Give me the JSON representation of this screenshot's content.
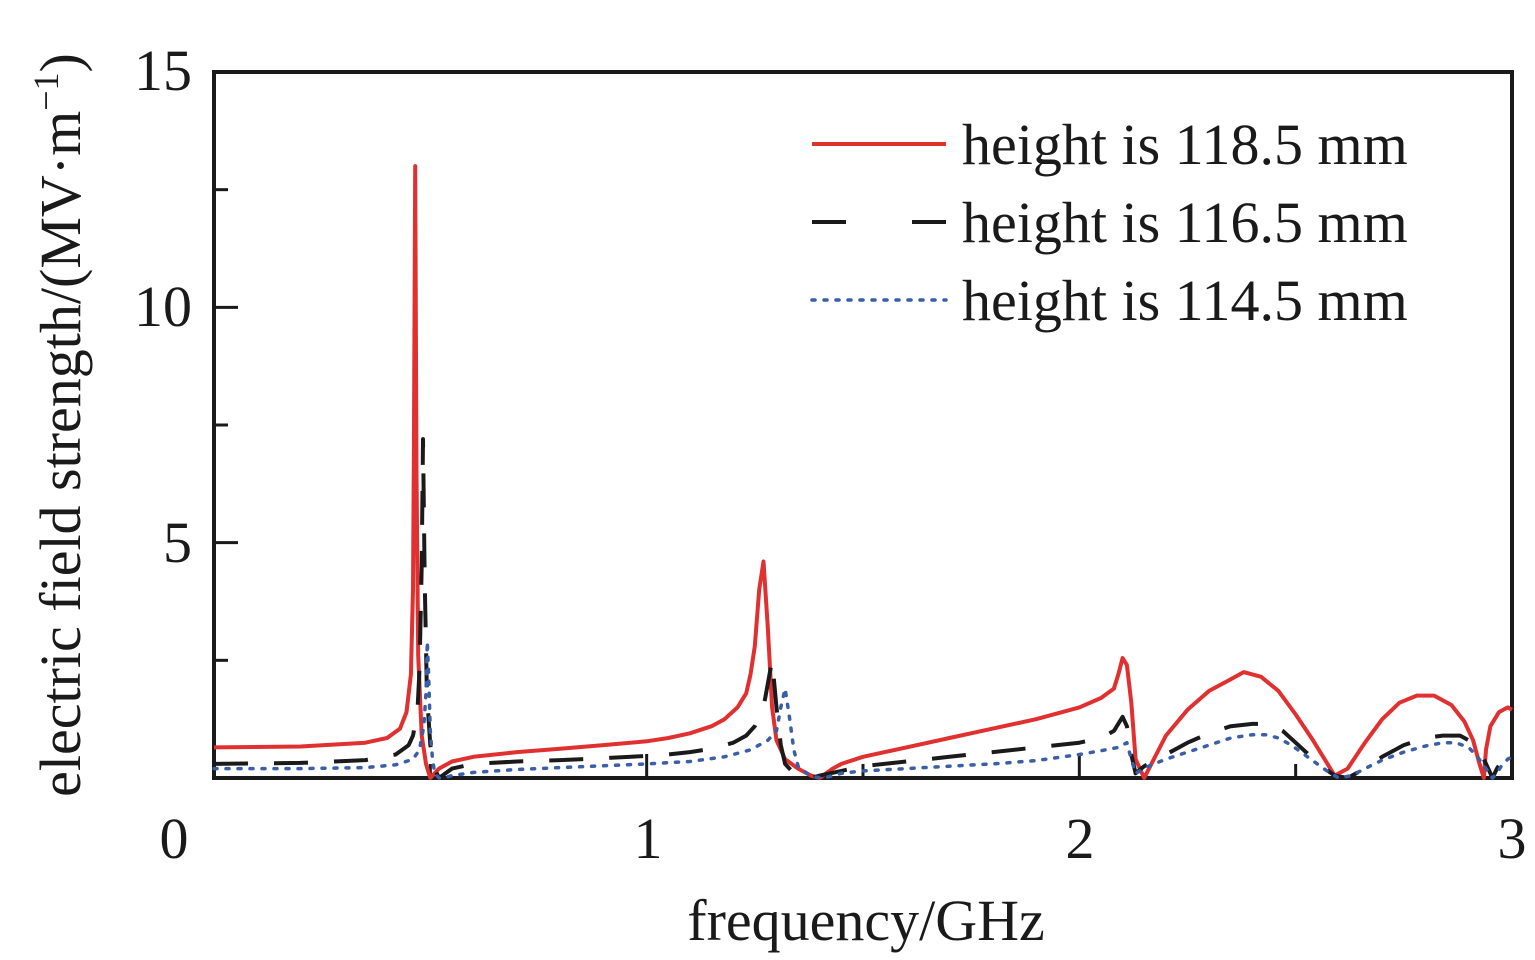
{
  "chart_data": {
    "type": "line",
    "xlabel": "frequency/GHz",
    "ylabel": "electric field strength/(MV·m",
    "ylabel_sup": "−1",
    "ylabel_close": ")",
    "xlim": [
      0,
      3
    ],
    "ylim": [
      0,
      15
    ],
    "x_ticks": [
      "0",
      "1",
      "2",
      "3"
    ],
    "y_ticks": [
      "5",
      "10",
      "15"
    ],
    "grid": false,
    "legend_position": "top-right",
    "series": [
      {
        "name": "height is 118.5 mm",
        "color": "#e03030",
        "style": "solid",
        "x": [
          0.0,
          0.2,
          0.35,
          0.4,
          0.43,
          0.445,
          0.455,
          0.46,
          0.462,
          0.465,
          0.468,
          0.472,
          0.48,
          0.49,
          0.5,
          0.52,
          0.55,
          0.6,
          0.7,
          0.8,
          0.9,
          1.0,
          1.05,
          1.1,
          1.15,
          1.18,
          1.21,
          1.23,
          1.24,
          1.25,
          1.26,
          1.27,
          1.28,
          1.29,
          1.3,
          1.32,
          1.35,
          1.38,
          1.4,
          1.43,
          1.45,
          1.5,
          1.6,
          1.7,
          1.8,
          1.9,
          2.0,
          2.05,
          2.08,
          2.09,
          2.1,
          2.11,
          2.12,
          2.13,
          2.15,
          2.2,
          2.25,
          2.3,
          2.35,
          2.38,
          2.42,
          2.46,
          2.5,
          2.54,
          2.57,
          2.59,
          2.62,
          2.66,
          2.7,
          2.74,
          2.78,
          2.82,
          2.86,
          2.89,
          2.91,
          2.925,
          2.935,
          2.94,
          2.95,
          2.97,
          2.99,
          3.0
        ],
        "y": [
          0.65,
          0.67,
          0.75,
          0.85,
          1.05,
          1.4,
          2.2,
          4.0,
          7.0,
          13.0,
          6.5,
          2.6,
          0.9,
          0.3,
          0.0,
          0.2,
          0.35,
          0.45,
          0.55,
          0.62,
          0.7,
          0.78,
          0.85,
          0.95,
          1.1,
          1.25,
          1.5,
          1.8,
          2.2,
          2.8,
          4.0,
          4.6,
          3.2,
          1.5,
          0.8,
          0.4,
          0.2,
          0.05,
          0.0,
          0.2,
          0.3,
          0.45,
          0.65,
          0.85,
          1.05,
          1.25,
          1.5,
          1.7,
          1.9,
          2.2,
          2.55,
          2.4,
          1.6,
          0.4,
          0.0,
          0.9,
          1.45,
          1.85,
          2.1,
          2.25,
          2.15,
          1.85,
          1.35,
          0.8,
          0.35,
          0.05,
          0.2,
          0.75,
          1.25,
          1.6,
          1.75,
          1.75,
          1.55,
          1.2,
          0.8,
          0.3,
          0.0,
          0.6,
          1.1,
          1.4,
          1.5,
          1.45
        ]
      },
      {
        "name": "height is 116.5 mm",
        "color": "#1a1a1a",
        "style": "dashed",
        "x": [
          0.0,
          0.2,
          0.35,
          0.42,
          0.45,
          0.46,
          0.47,
          0.475,
          0.48,
          0.483,
          0.487,
          0.492,
          0.5,
          0.51,
          0.52,
          0.55,
          0.6,
          0.7,
          0.8,
          0.9,
          1.0,
          1.05,
          1.1,
          1.15,
          1.2,
          1.23,
          1.25,
          1.27,
          1.28,
          1.29,
          1.3,
          1.31,
          1.32,
          1.34,
          1.36,
          1.38,
          1.4,
          1.45,
          1.5,
          1.6,
          1.7,
          1.8,
          1.9,
          2.0,
          2.05,
          2.08,
          2.1,
          2.11,
          2.12,
          2.13,
          2.15,
          2.2,
          2.25,
          2.3,
          2.35,
          2.4,
          2.44,
          2.47,
          2.5,
          2.53,
          2.56,
          2.59,
          2.62,
          2.65,
          2.7,
          2.75,
          2.8,
          2.84,
          2.88,
          2.91,
          2.93,
          2.945,
          2.955,
          2.965,
          2.98,
          3.0
        ],
        "y": [
          0.3,
          0.32,
          0.38,
          0.5,
          0.7,
          0.9,
          1.4,
          2.3,
          4.5,
          7.2,
          4.2,
          1.8,
          0.7,
          0.2,
          0.0,
          0.2,
          0.3,
          0.35,
          0.38,
          0.42,
          0.47,
          0.5,
          0.55,
          0.62,
          0.75,
          0.9,
          1.1,
          1.5,
          2.0,
          2.5,
          1.5,
          0.7,
          0.3,
          0.1,
          0.0,
          0.0,
          0.05,
          0.15,
          0.25,
          0.35,
          0.45,
          0.55,
          0.65,
          0.75,
          0.85,
          1.0,
          1.3,
          1.1,
          0.5,
          0.1,
          0.25,
          0.5,
          0.75,
          0.95,
          1.1,
          1.15,
          1.15,
          1.0,
          0.75,
          0.5,
          0.25,
          0.05,
          0.0,
          0.15,
          0.45,
          0.7,
          0.85,
          0.9,
          0.9,
          0.75,
          0.5,
          0.2,
          0.0,
          0.2,
          0.4,
          0.5
        ]
      },
      {
        "name": "height is 114.5 mm",
        "color": "#3a5fa8",
        "style": "dotted",
        "x": [
          0.0,
          0.2,
          0.35,
          0.42,
          0.46,
          0.475,
          0.485,
          0.49,
          0.493,
          0.496,
          0.5,
          0.505,
          0.51,
          0.52,
          0.53,
          0.55,
          0.6,
          0.7,
          0.8,
          0.9,
          1.0,
          1.1,
          1.18,
          1.24,
          1.28,
          1.3,
          1.31,
          1.32,
          1.33,
          1.34,
          1.35,
          1.37,
          1.39,
          1.41,
          1.43,
          1.45,
          1.5,
          1.6,
          1.7,
          1.8,
          1.9,
          2.0,
          2.05,
          2.09,
          2.11,
          2.12,
          2.13,
          2.14,
          2.16,
          2.2,
          2.25,
          2.3,
          2.35,
          2.4,
          2.43,
          2.46,
          2.49,
          2.52,
          2.55,
          2.58,
          2.6,
          2.63,
          2.66,
          2.7,
          2.75,
          2.8,
          2.84,
          2.87,
          2.9,
          2.92,
          2.94,
          2.955,
          2.965,
          2.975,
          2.99,
          3.0
        ],
        "y": [
          0.2,
          0.2,
          0.22,
          0.28,
          0.4,
          0.6,
          1.1,
          1.8,
          2.9,
          2.2,
          1.0,
          0.4,
          0.1,
          0.0,
          0.0,
          0.05,
          0.12,
          0.18,
          0.22,
          0.26,
          0.3,
          0.35,
          0.45,
          0.6,
          0.8,
          1.0,
          1.5,
          1.9,
          1.3,
          0.6,
          0.25,
          0.1,
          0.02,
          0.0,
          0.05,
          0.1,
          0.15,
          0.2,
          0.25,
          0.3,
          0.37,
          0.5,
          0.58,
          0.65,
          0.75,
          0.4,
          0.1,
          0.15,
          0.25,
          0.4,
          0.55,
          0.7,
          0.85,
          0.92,
          0.92,
          0.85,
          0.7,
          0.5,
          0.3,
          0.1,
          0.0,
          0.05,
          0.2,
          0.38,
          0.55,
          0.68,
          0.75,
          0.75,
          0.65,
          0.45,
          0.2,
          0.0,
          0.1,
          0.25,
          0.4,
          0.45
        ]
      }
    ]
  }
}
